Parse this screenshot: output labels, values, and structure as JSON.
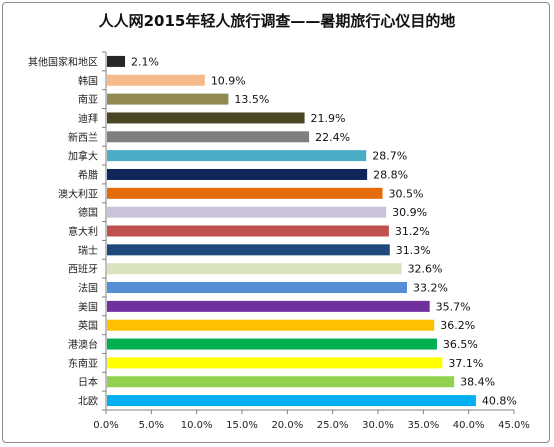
{
  "chart_data": {
    "type": "bar",
    "orientation": "horizontal",
    "title": "人人网2015年轻人旅行调查——暑期旅行心仪目的地",
    "categories": [
      "其他国家和地区",
      "韩国",
      "南亚",
      "迪拜",
      "新西兰",
      "加拿大",
      "希腊",
      "澳大利亚",
      "德国",
      "意大利",
      "瑞士",
      "西班牙",
      "法国",
      "美国",
      "英国",
      "港澳台",
      "东南亚",
      "日本",
      "北欧"
    ],
    "values": [
      2.1,
      10.9,
      13.5,
      21.9,
      22.4,
      28.7,
      28.8,
      30.5,
      30.9,
      31.2,
      31.3,
      32.6,
      33.2,
      35.7,
      36.2,
      36.5,
      37.1,
      38.4,
      40.8
    ],
    "value_labels": [
      "2.1%",
      "10.9%",
      "13.5%",
      "21.9%",
      "22.4%",
      "28.7%",
      "28.8%",
      "30.5%",
      "30.9%",
      "31.2%",
      "31.3%",
      "32.6%",
      "33.2%",
      "35.7%",
      "36.2%",
      "36.5%",
      "37.1%",
      "38.4%",
      "40.8%"
    ],
    "colors": [
      "#262626",
      "#f6b98a",
      "#938953",
      "#4a4523",
      "#7f7f7f",
      "#4bacc6",
      "#10265a",
      "#e46c0a",
      "#ccc1da",
      "#c0504d",
      "#1f497d",
      "#d7e4bd",
      "#558ed5",
      "#7030a0",
      "#ffc000",
      "#00b050",
      "#ffff00",
      "#92d050",
      "#00b0f0"
    ],
    "xlim": [
      0,
      45
    ],
    "xticks": [
      0,
      5,
      10,
      15,
      20,
      25,
      30,
      35,
      40,
      45
    ],
    "xtick_labels": [
      "0.0%",
      "5.0%",
      "10.0%",
      "15.0%",
      "20.0%",
      "25.0%",
      "30.0%",
      "35.0%",
      "40.0%",
      "45.0%"
    ],
    "grid": false,
    "legend": "none"
  }
}
